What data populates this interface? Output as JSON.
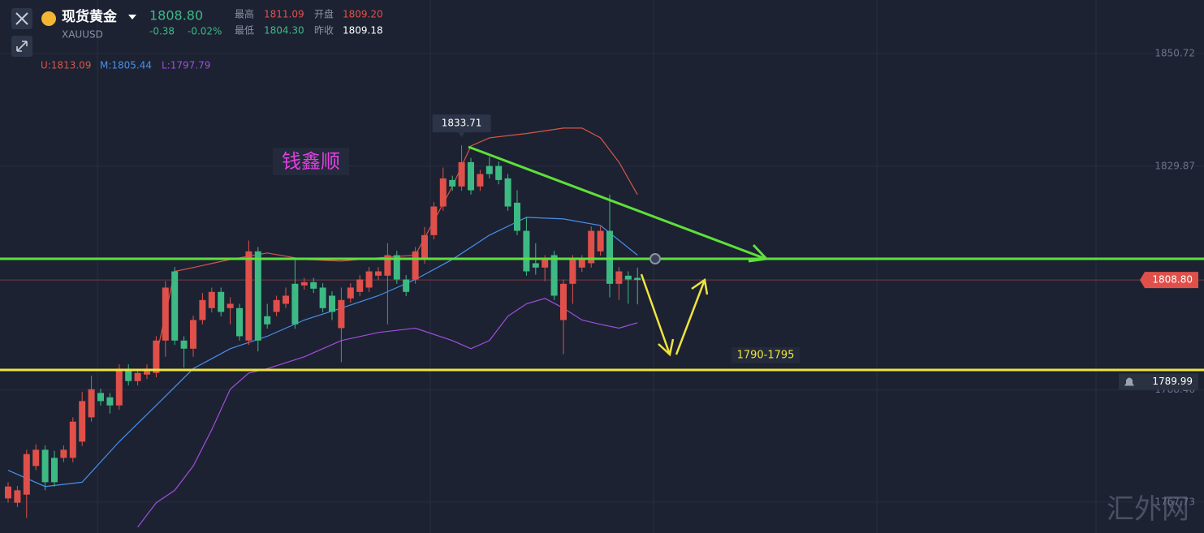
{
  "header": {
    "name": "现货黄金",
    "symbol": "XAUUSD",
    "price": "1808.80",
    "change": "-0.38",
    "change_pct": "-0.02%",
    "stats": [
      {
        "label": "最高",
        "value": "1811.09"
      },
      {
        "label": "开盘",
        "value": "1809.20"
      },
      {
        "label": "最低",
        "value": "1804.30"
      },
      {
        "label": "昨收",
        "value": "1809.18"
      }
    ]
  },
  "chart_data": {
    "type": "candlestick",
    "ylim": [
      1762,
      1860.6
    ],
    "yticks": [
      1850.72,
      1829.87,
      1788.46,
      1767.73
    ],
    "up_color": "#e0504a",
    "down_color": "#3dba84",
    "candles": [
      [
        1768.4,
        1771.4,
        1767.6,
        1770.6
      ],
      [
        1767.6,
        1770.7,
        1766.8,
        1769.9
      ],
      [
        1769.1,
        1777.4,
        1764.8,
        1776.6
      ],
      [
        1774.4,
        1778.4,
        1773.6,
        1777.4
      ],
      [
        1777.4,
        1778.2,
        1769.9,
        1771.4
      ],
      [
        1775.9,
        1777.2,
        1770.6,
        1771.4
      ],
      [
        1775.9,
        1778.2,
        1775.1,
        1777.4
      ],
      [
        1775.9,
        1783.4,
        1775.1,
        1782.6
      ],
      [
        1778.9,
        1788.1,
        1778.1,
        1786.4
      ],
      [
        1783.4,
        1791.1,
        1782.6,
        1788.6
      ],
      [
        1787.9,
        1788.7,
        1785.6,
        1786.4
      ],
      [
        1787.1,
        1787.9,
        1784.1,
        1785.6
      ],
      [
        1785.6,
        1793.2,
        1784.8,
        1792.4
      ],
      [
        1792.4,
        1793.2,
        1789.3,
        1790.1
      ],
      [
        1790.1,
        1792.4,
        1789.3,
        1791.6
      ],
      [
        1791.3,
        1793.2,
        1790.5,
        1792.4
      ],
      [
        1791.6,
        1798.4,
        1790.8,
        1797.6
      ],
      [
        1797.6,
        1808.6,
        1794.6,
        1807.4
      ],
      [
        1810.4,
        1811.2,
        1796.8,
        1797.6
      ],
      [
        1797.6,
        1798.4,
        1792.6,
        1796.1
      ],
      [
        1796.1,
        1802.2,
        1794.6,
        1801.4
      ],
      [
        1801.4,
        1806.4,
        1800.6,
        1805.1
      ],
      [
        1803.6,
        1807.4,
        1802.8,
        1806.6
      ],
      [
        1806.6,
        1807.4,
        1802.1,
        1802.9
      ],
      [
        1803.6,
        1805.6,
        1800.6,
        1804.4
      ],
      [
        1803.6,
        1804.4,
        1797.6,
        1798.4
      ],
      [
        1797.6,
        1816.1,
        1796.8,
        1814.1
      ],
      [
        1814.1,
        1814.9,
        1795.6,
        1797.6
      ],
      [
        1802.1,
        1804.4,
        1799.8,
        1800.6
      ],
      [
        1802.9,
        1805.9,
        1802.1,
        1805.1
      ],
      [
        1804.4,
        1807.4,
        1803.6,
        1805.9
      ],
      [
        1808.1,
        1812.6,
        1799.8,
        1800.6
      ],
      [
        1807.8,
        1809.2,
        1807.0,
        1808.4
      ],
      [
        1808.4,
        1809.2,
        1806.4,
        1807.2
      ],
      [
        1807.4,
        1808.2,
        1802.8,
        1803.6
      ],
      [
        1805.9,
        1806.7,
        1801.4,
        1802.9
      ],
      [
        1799.9,
        1807.4,
        1793.6,
        1805.1
      ],
      [
        1805.4,
        1808.2,
        1804.6,
        1807.4
      ],
      [
        1806.6,
        1809.7,
        1805.8,
        1808.9
      ],
      [
        1807.4,
        1811.2,
        1806.6,
        1810.4
      ],
      [
        1809.6,
        1811.2,
        1808.8,
        1810.4
      ],
      [
        1809.6,
        1815.6,
        1800.6,
        1813.4
      ],
      [
        1813.4,
        1814.2,
        1808.1,
        1808.9
      ],
      [
        1808.9,
        1809.7,
        1805.8,
        1806.6
      ],
      [
        1808.9,
        1814.9,
        1808.1,
        1814.1
      ],
      [
        1812.6,
        1818.6,
        1811.8,
        1817.1
      ],
      [
        1817.1,
        1823.2,
        1816.3,
        1822.4
      ],
      [
        1822.4,
        1829.6,
        1821.6,
        1827.6
      ],
      [
        1827.3,
        1828.1,
        1825.3,
        1826.1
      ],
      [
        1826.1,
        1833.71,
        1825.3,
        1830.6
      ],
      [
        1830.6,
        1831.4,
        1824.6,
        1825.4
      ],
      [
        1826.1,
        1829.2,
        1825.3,
        1828.4
      ],
      [
        1829.9,
        1831.6,
        1827.6,
        1828.4
      ],
      [
        1829.9,
        1830.7,
        1826.5,
        1827.3
      ],
      [
        1827.6,
        1828.4,
        1821.6,
        1822.4
      ],
      [
        1823.1,
        1825.4,
        1817.1,
        1817.9
      ],
      [
        1817.9,
        1820.4,
        1809.6,
        1810.4
      ],
      [
        1811.9,
        1815.6,
        1809.8,
        1811.1
      ],
      [
        1811.1,
        1813.4,
        1808.6,
        1812.6
      ],
      [
        1813.4,
        1814.2,
        1805.1,
        1805.9
      ],
      [
        1801.4,
        1808.9,
        1795.1,
        1808.1
      ],
      [
        1808.1,
        1813.4,
        1804.4,
        1812.6
      ],
      [
        1811.1,
        1813.4,
        1810.3,
        1812.6
      ],
      [
        1811.9,
        1818.7,
        1811.1,
        1817.9
      ],
      [
        1814.1,
        1818.7,
        1813.3,
        1817.9
      ],
      [
        1817.9,
        1824.6,
        1805.6,
        1808.1
      ],
      [
        1808.1,
        1811.2,
        1805.1,
        1810.4
      ],
      [
        1809.6,
        1810.4,
        1804.4,
        1808.9
      ],
      [
        1809.2,
        1811.09,
        1804.3,
        1808.8
      ]
    ],
    "series": [
      {
        "name": "U:1813.09",
        "color": "#d9564a",
        "x": [
          16,
          18,
          20,
          24,
          28,
          32,
          36,
          40,
          44,
          48,
          50,
          52,
          56,
          60,
          62,
          64,
          66,
          68
        ],
        "values": [
          1794.6,
          1810.4,
          1811.1,
          1812.6,
          1813.8,
          1812.6,
          1812.3,
          1812.9,
          1813.4,
          1826.1,
          1833.6,
          1835.1,
          1835.9,
          1836.9,
          1836.9,
          1835.1,
          1830.6,
          1824.6
        ]
      },
      {
        "name": "M:1805.44",
        "color": "#4a8fea",
        "x": [
          0,
          4,
          8,
          12,
          16,
          20,
          24,
          28,
          32,
          36,
          40,
          44,
          48,
          52,
          56,
          60,
          64,
          68
        ],
        "values": [
          1773.6,
          1770.6,
          1771.4,
          1778.9,
          1785.6,
          1792.4,
          1796.1,
          1798.4,
          1801.4,
          1803.6,
          1805.9,
          1808.9,
          1812.6,
          1817.1,
          1820.4,
          1820.1,
          1818.9,
          1813.4
        ]
      },
      {
        "name": "L:1797.79",
        "color": "#a24ddc",
        "x": [
          14,
          16,
          18,
          20,
          22,
          24,
          26,
          28,
          32,
          36,
          40,
          44,
          48,
          50,
          52,
          54,
          56,
          58,
          60,
          62,
          64,
          66,
          68
        ],
        "values": [
          1763.1,
          1767.6,
          1769.9,
          1774.4,
          1781.1,
          1788.6,
          1791.6,
          1792.4,
          1794.6,
          1797.6,
          1799.1,
          1799.9,
          1797.6,
          1796.1,
          1797.6,
          1802.1,
          1804.4,
          1805.4,
          1803.6,
          1801.4,
          1800.6,
          1799.9,
          1800.9
        ]
      }
    ],
    "last_price": {
      "value": 1808.8,
      "label": "1808.80"
    },
    "alert_price": {
      "value": 1789.99,
      "label": "1789.99"
    },
    "annotations": {
      "author": "钱鑫顺",
      "target": "1790-1795",
      "watermark": "汇外网"
    }
  }
}
